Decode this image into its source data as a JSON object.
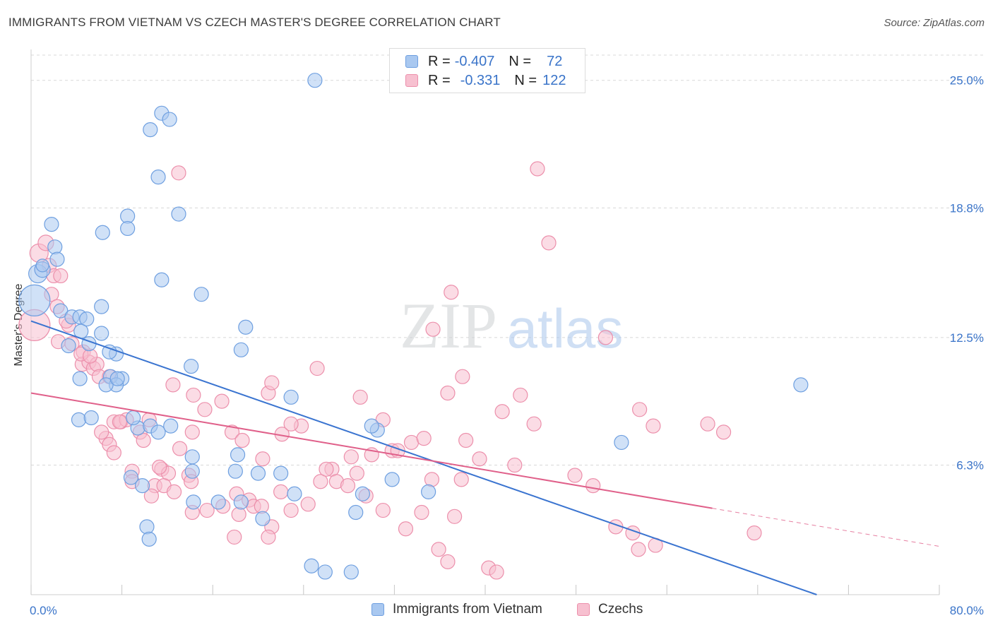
{
  "title": "IMMIGRANTS FROM VIETNAM VS CZECH MASTER'S DEGREE CORRELATION CHART",
  "source": "Source: ZipAtlas.com",
  "watermark": {
    "zip": "ZIP",
    "atlas": "atlas"
  },
  "colors": {
    "blue_fill": "#a9c8f0",
    "blue_stroke": "#6e9fe0",
    "blue_line": "#3a74d0",
    "pink_fill": "#f7c0d0",
    "pink_stroke": "#ec8fab",
    "pink_line": "#e0608a",
    "tick_label": "#3a74c9",
    "grid": "#d8d8d8"
  },
  "legend": {
    "rows": [
      {
        "r_label": "R =",
        "r_value": "-0.407",
        "n_label": "N =",
        "n_value": "72",
        "series": "blue"
      },
      {
        "r_label": "R =",
        "r_value": "-0.331",
        "n_label": "N =",
        "n_value": "122",
        "series": "pink"
      }
    ]
  },
  "bottom_legend": [
    {
      "label": "Immigrants from Vietnam",
      "series": "blue"
    },
    {
      "label": "Czechs",
      "series": "pink"
    }
  ],
  "chart_data": {
    "type": "scatter",
    "title": "IMMIGRANTS FROM VIETNAM VS CZECH MASTER'S DEGREE CORRELATION CHART",
    "xlabel": "",
    "ylabel": "Master's Degree",
    "xlim": [
      0,
      80
    ],
    "ylim": [
      0,
      26.5
    ],
    "x_tick_labels": [
      "0.0%",
      "80.0%"
    ],
    "y_ticks": [
      6.3,
      12.5,
      18.8,
      25.0
    ],
    "y_tick_labels": [
      "6.3%",
      "12.5%",
      "18.8%",
      "25.0%"
    ],
    "grid": true,
    "series": [
      {
        "name": "Immigrants from Vietnam",
        "color": "blue",
        "trend": {
          "x0": 0,
          "y0": 13.3,
          "x1": 69.2,
          "y1": 0.0,
          "dashed_to": null
        },
        "points": [
          [
            0.3,
            14.3,
            22
          ],
          [
            0.6,
            15.6,
            13
          ],
          [
            1.0,
            15.8,
            11
          ],
          [
            1.8,
            18.0,
            10
          ],
          [
            2.1,
            16.9,
            10
          ],
          [
            2.3,
            16.3,
            10
          ],
          [
            1.0,
            16.0,
            9
          ],
          [
            2.6,
            13.8,
            10
          ],
          [
            3.6,
            13.5,
            10
          ],
          [
            4.3,
            13.5,
            10
          ],
          [
            4.9,
            13.4,
            10
          ],
          [
            4.4,
            12.8,
            10
          ],
          [
            5.1,
            12.2,
            10
          ],
          [
            3.3,
            12.1,
            10
          ],
          [
            6.2,
            14.0,
            10
          ],
          [
            6.2,
            12.7,
            10
          ],
          [
            7.5,
            11.7,
            10
          ],
          [
            8.0,
            10.5,
            10
          ],
          [
            7.0,
            10.6,
            10
          ],
          [
            7.5,
            10.2,
            10
          ],
          [
            6.6,
            10.2,
            10
          ],
          [
            4.3,
            10.5,
            10
          ],
          [
            4.2,
            8.5,
            10
          ],
          [
            5.3,
            8.6,
            10
          ],
          [
            9.4,
            8.1,
            10
          ],
          [
            10.5,
            8.2,
            10
          ],
          [
            11.2,
            7.9,
            10
          ],
          [
            12.3,
            8.2,
            10
          ],
          [
            14.1,
            11.1,
            10
          ],
          [
            11.5,
            15.3,
            10
          ],
          [
            10.5,
            22.6,
            10
          ],
          [
            11.5,
            23.4,
            10
          ],
          [
            12.2,
            23.1,
            10
          ],
          [
            11.2,
            20.3,
            10
          ],
          [
            8.5,
            18.4,
            10
          ],
          [
            8.5,
            17.8,
            10
          ],
          [
            13.0,
            18.5,
            10
          ],
          [
            6.3,
            17.6,
            10
          ],
          [
            15.0,
            14.6,
            10
          ],
          [
            18.9,
            13.0,
            10
          ],
          [
            18.5,
            11.9,
            10
          ],
          [
            14.2,
            6.7,
            10
          ],
          [
            14.2,
            6.0,
            10
          ],
          [
            8.8,
            5.7,
            10
          ],
          [
            9.8,
            5.3,
            10
          ],
          [
            14.3,
            4.5,
            10
          ],
          [
            16.5,
            4.5,
            10
          ],
          [
            18.5,
            4.5,
            10
          ],
          [
            18.0,
            6.0,
            10
          ],
          [
            18.2,
            6.8,
            10
          ],
          [
            22.9,
            9.6,
            10
          ],
          [
            22.0,
            5.9,
            10
          ],
          [
            23.2,
            4.9,
            10
          ],
          [
            24.7,
            1.4,
            10
          ],
          [
            25.9,
            1.1,
            10
          ],
          [
            28.2,
            1.1,
            10
          ],
          [
            29.2,
            4.9,
            10
          ],
          [
            28.6,
            4.0,
            10
          ],
          [
            31.8,
            5.6,
            10
          ],
          [
            30.5,
            8.0,
            10
          ],
          [
            20.4,
            3.7,
            10
          ],
          [
            10.2,
            3.3,
            10
          ],
          [
            10.4,
            2.7,
            10
          ],
          [
            25.0,
            25.0,
            10
          ],
          [
            67.8,
            10.2,
            10
          ],
          [
            52.0,
            7.4,
            10
          ],
          [
            30.0,
            8.2,
            10
          ],
          [
            35.0,
            5.0,
            10
          ],
          [
            9.0,
            8.6,
            10
          ],
          [
            20.0,
            5.9,
            10
          ],
          [
            6.9,
            11.8,
            10
          ],
          [
            7.6,
            10.5,
            10
          ]
        ]
      },
      {
        "name": "Czechs",
        "color": "pink",
        "trend": {
          "x0": 0,
          "y0": 9.8,
          "x1": 60.0,
          "y1": 4.2,
          "dashed_to": {
            "x": 80,
            "y": 2.35
          }
        },
        "points": [
          [
            0.3,
            13.1,
            22
          ],
          [
            0.7,
            16.6,
            13
          ],
          [
            1.3,
            17.1,
            11
          ],
          [
            1.6,
            16.0,
            10
          ],
          [
            2.0,
            15.5,
            10
          ],
          [
            2.6,
            15.5,
            10
          ],
          [
            1.8,
            14.6,
            10
          ],
          [
            3.3,
            13.1,
            10
          ],
          [
            3.1,
            13.3,
            10
          ],
          [
            2.4,
            12.3,
            10
          ],
          [
            3.6,
            12.2,
            10
          ],
          [
            4.6,
            11.8,
            10
          ],
          [
            4.5,
            11.2,
            10
          ],
          [
            5.1,
            11.3,
            10
          ],
          [
            5.5,
            11.0,
            10
          ],
          [
            5.8,
            11.2,
            10
          ],
          [
            6.0,
            10.6,
            10
          ],
          [
            6.9,
            10.6,
            10
          ],
          [
            7.3,
            8.4,
            10
          ],
          [
            7.9,
            8.4,
            10
          ],
          [
            8.4,
            8.5,
            10
          ],
          [
            6.6,
            7.6,
            10
          ],
          [
            6.9,
            7.3,
            10
          ],
          [
            7.3,
            6.9,
            10
          ],
          [
            9.6,
            7.9,
            10
          ],
          [
            9.9,
            7.5,
            10
          ],
          [
            10.4,
            8.5,
            10
          ],
          [
            11.5,
            6.1,
            10
          ],
          [
            12.1,
            5.9,
            10
          ],
          [
            13.1,
            7.1,
            10
          ],
          [
            14.2,
            7.9,
            10
          ],
          [
            12.5,
            10.2,
            10
          ],
          [
            14.3,
            9.7,
            10
          ],
          [
            15.3,
            9.0,
            10
          ],
          [
            16.8,
            9.4,
            10
          ],
          [
            17.7,
            7.9,
            10
          ],
          [
            18.6,
            7.5,
            10
          ],
          [
            20.4,
            6.6,
            10
          ],
          [
            20.9,
            9.8,
            10
          ],
          [
            21.2,
            10.3,
            10
          ],
          [
            22.1,
            7.8,
            10
          ],
          [
            23.8,
            8.2,
            10
          ],
          [
            25.2,
            11.0,
            10
          ],
          [
            8.9,
            6.0,
            10
          ],
          [
            8.9,
            5.5,
            10
          ],
          [
            10.9,
            5.3,
            10
          ],
          [
            11.7,
            5.3,
            10
          ],
          [
            12.6,
            5.0,
            10
          ],
          [
            13.9,
            5.8,
            10
          ],
          [
            14.1,
            5.5,
            10
          ],
          [
            15.5,
            4.1,
            10
          ],
          [
            16.9,
            4.3,
            10
          ],
          [
            18.1,
            4.9,
            10
          ],
          [
            19.2,
            4.6,
            10
          ],
          [
            19.6,
            4.3,
            10
          ],
          [
            20.3,
            4.3,
            10
          ],
          [
            21.2,
            3.3,
            10
          ],
          [
            22.0,
            5.0,
            10
          ],
          [
            22.9,
            4.1,
            10
          ],
          [
            24.4,
            4.4,
            10
          ],
          [
            25.5,
            5.5,
            10
          ],
          [
            26.5,
            6.1,
            10
          ],
          [
            26.9,
            5.5,
            10
          ],
          [
            27.9,
            5.3,
            10
          ],
          [
            28.7,
            5.9,
            10
          ],
          [
            29.0,
            9.6,
            10
          ],
          [
            29.5,
            4.8,
            10
          ],
          [
            30.0,
            6.8,
            10
          ],
          [
            31.0,
            8.5,
            10
          ],
          [
            31.8,
            7.0,
            10
          ],
          [
            32.3,
            7.0,
            10
          ],
          [
            33.5,
            7.4,
            10
          ],
          [
            34.6,
            7.6,
            10
          ],
          [
            34.4,
            4.0,
            10
          ],
          [
            35.3,
            5.6,
            10
          ],
          [
            35.9,
            2.2,
            10
          ],
          [
            36.7,
            1.6,
            10
          ],
          [
            37.3,
            3.8,
            10
          ],
          [
            37.9,
            5.6,
            10
          ],
          [
            38.3,
            7.5,
            10
          ],
          [
            39.5,
            6.6,
            10
          ],
          [
            40.3,
            1.3,
            10
          ],
          [
            41.0,
            1.1,
            10
          ],
          [
            41.5,
            8.9,
            10
          ],
          [
            42.6,
            6.3,
            10
          ],
          [
            43.1,
            9.7,
            10
          ],
          [
            44.3,
            8.3,
            10
          ],
          [
            44.6,
            20.7,
            10
          ],
          [
            45.6,
            17.1,
            10
          ],
          [
            47.9,
            5.8,
            10
          ],
          [
            49.5,
            5.3,
            10
          ],
          [
            50.6,
            12.5,
            10
          ],
          [
            51.5,
            3.3,
            10
          ],
          [
            53.0,
            3.0,
            10
          ],
          [
            53.6,
            9.0,
            10
          ],
          [
            54.8,
            8.2,
            10
          ],
          [
            55.0,
            2.4,
            10
          ],
          [
            59.6,
            8.3,
            10
          ],
          [
            61.0,
            7.9,
            10
          ],
          [
            63.7,
            3.0,
            10
          ],
          [
            53.5,
            2.2,
            10
          ],
          [
            37.0,
            14.7,
            10
          ],
          [
            35.4,
            12.9,
            10
          ],
          [
            38.0,
            10.6,
            10
          ],
          [
            36.7,
            9.8,
            10
          ],
          [
            13.0,
            20.5,
            10
          ],
          [
            11.3,
            6.2,
            10
          ],
          [
            10.6,
            4.8,
            10
          ],
          [
            14.2,
            4.0,
            10
          ],
          [
            18.3,
            3.9,
            10
          ],
          [
            22.9,
            8.3,
            10
          ],
          [
            26.0,
            6.1,
            10
          ],
          [
            28.2,
            6.7,
            10
          ],
          [
            31.0,
            4.1,
            10
          ],
          [
            33.0,
            3.2,
            10
          ],
          [
            20.9,
            2.8,
            10
          ],
          [
            17.9,
            2.8,
            10
          ],
          [
            7.8,
            8.4,
            10
          ],
          [
            6.2,
            7.9,
            10
          ],
          [
            4.4,
            11.7,
            10
          ],
          [
            5.2,
            11.6,
            10
          ],
          [
            2.3,
            14.0,
            10
          ]
        ]
      }
    ]
  }
}
